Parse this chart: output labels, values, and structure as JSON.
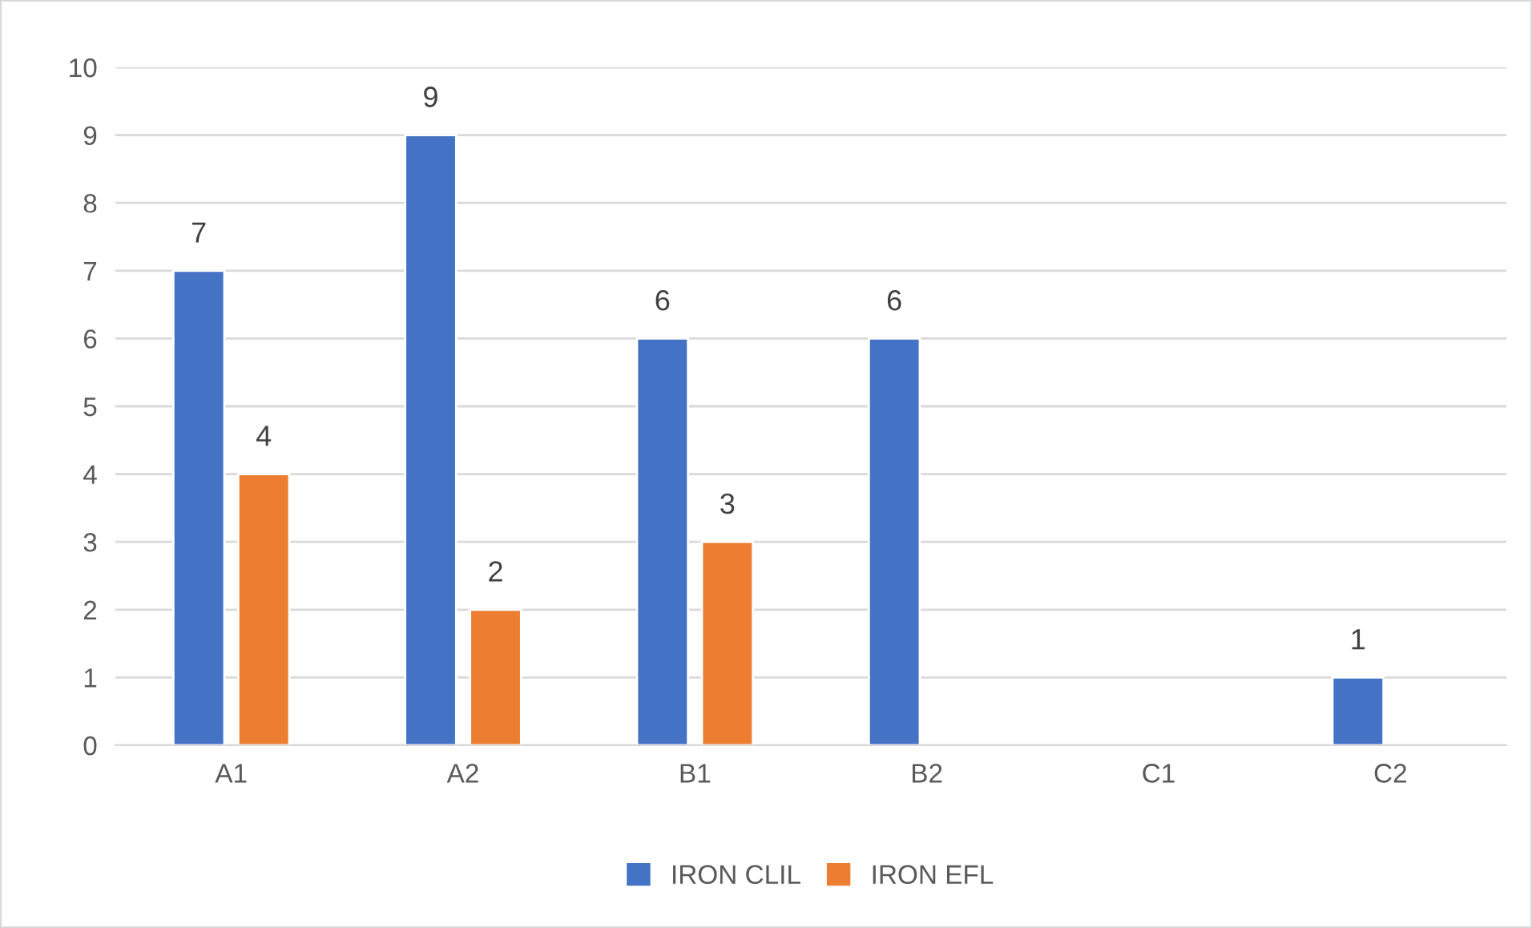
{
  "chart_data": {
    "type": "bar",
    "categories": [
      "A1",
      "A2",
      "B1",
      "B2",
      "C1",
      "C2"
    ],
    "series": [
      {
        "name": "IRON CLIL",
        "color": "#4472c4",
        "values": [
          7,
          9,
          6,
          6,
          null,
          1
        ]
      },
      {
        "name": "IRON EFL",
        "color": "#ed7d31",
        "values": [
          4,
          2,
          3,
          null,
          null,
          null
        ]
      }
    ],
    "ylim": [
      0,
      10
    ],
    "yticks": [
      0,
      1,
      2,
      3,
      4,
      5,
      6,
      7,
      8,
      9,
      10
    ],
    "grid": "y",
    "legend": "bottom",
    "data_labels": true
  }
}
